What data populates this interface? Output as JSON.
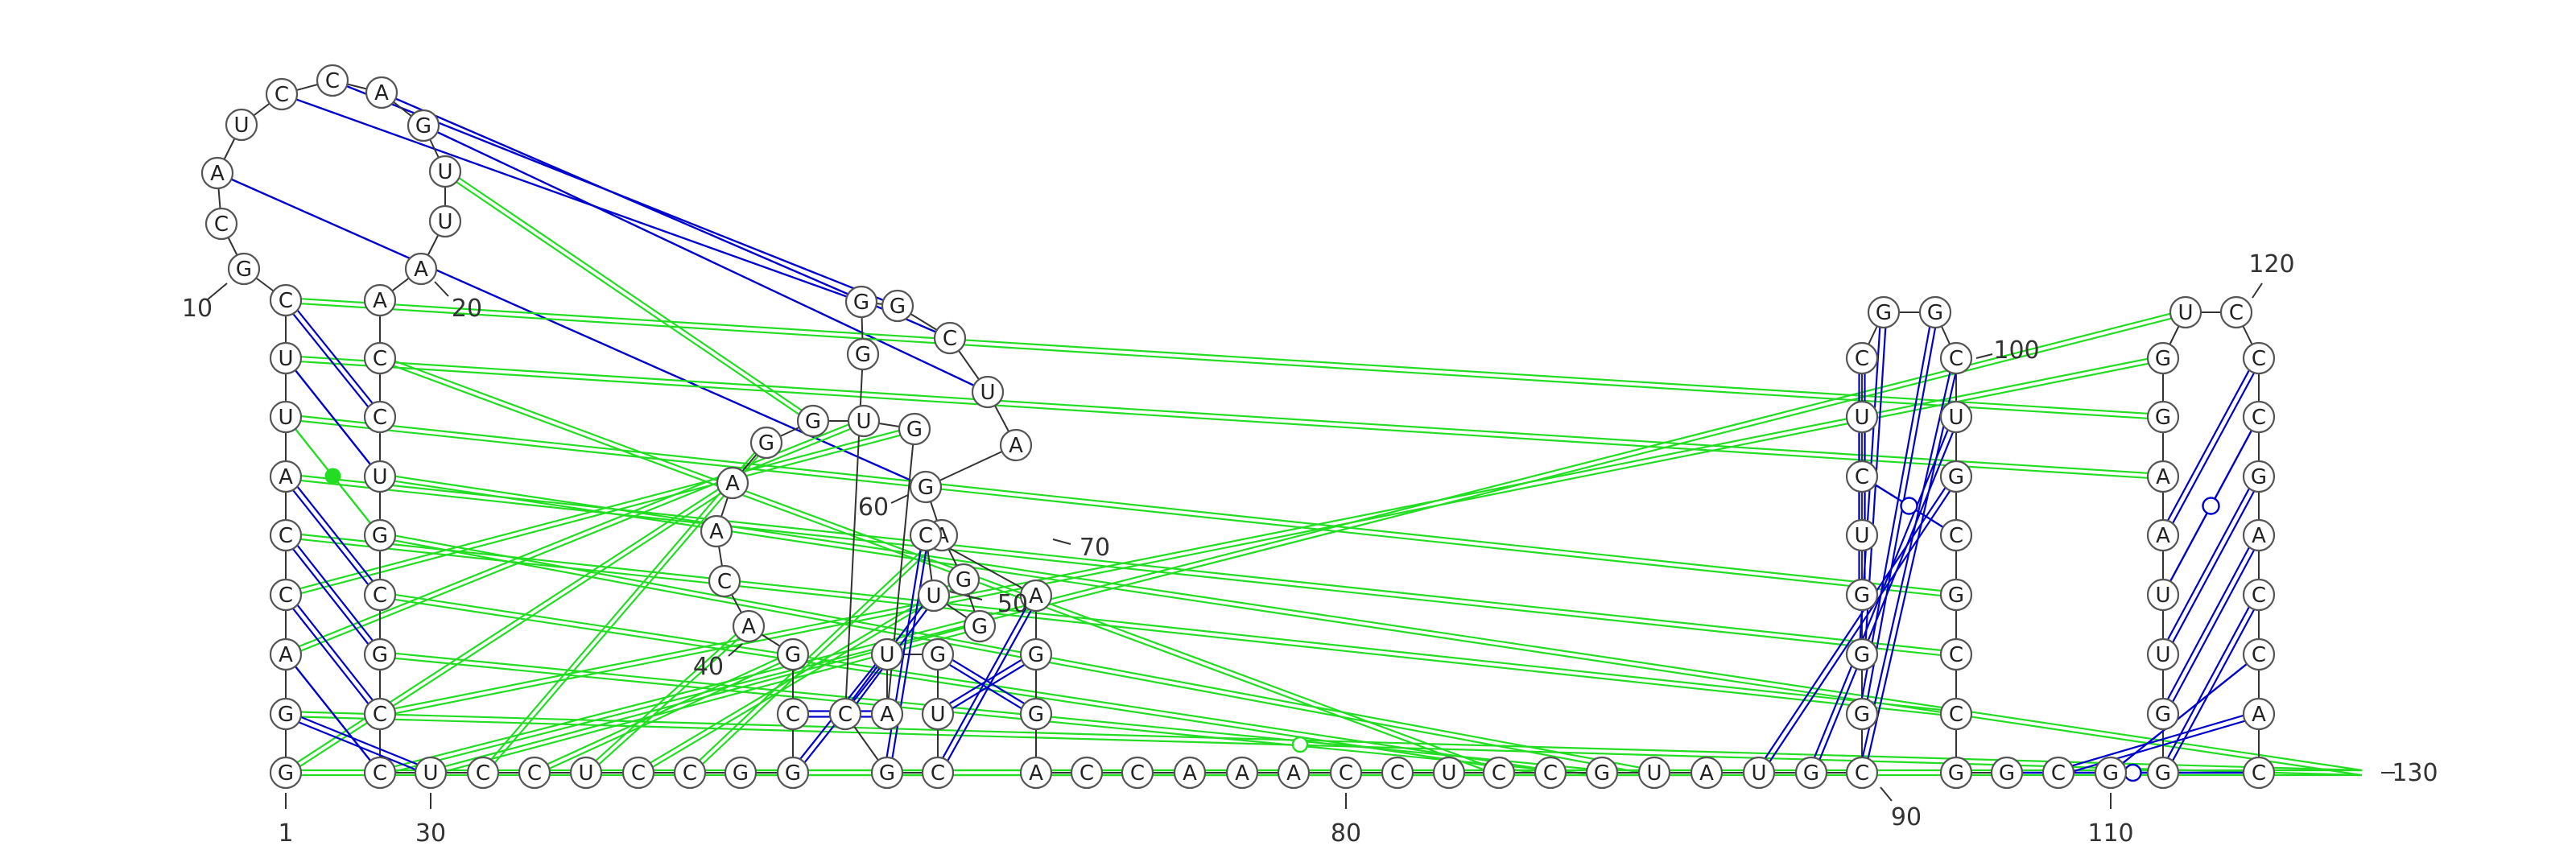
{
  "title": "RNA secondary structure diagram",
  "colors": {
    "canonical": "#0000cc",
    "noncanonical": "#22dd22",
    "outline": "#555555",
    "letter": "#222222"
  },
  "sequence": "GGACCAUUCGCAUCCAGUUAACCUGCGCCUCCUCCGGCGACAAGGUGAUGUCGCGGGCUAGAGGUCAGGACCAAACCUCCGUAUGCGGGUCUCGGCUGCGCCGGCGGGUUAAGGUCCCGACCAC",
  "index_labels": [
    {
      "num": "1",
      "text": "1"
    },
    {
      "num": "10",
      "text": "10"
    },
    {
      "num": "20",
      "text": "20"
    },
    {
      "num": "30",
      "text": "30"
    },
    {
      "num": "40",
      "text": "40"
    },
    {
      "num": "50",
      "text": "50"
    },
    {
      "num": "60",
      "text": "60"
    },
    {
      "num": "70",
      "text": "70"
    },
    {
      "num": "80",
      "text": "80"
    },
    {
      "num": "90",
      "text": "90"
    },
    {
      "num": "100",
      "text": "100"
    },
    {
      "num": "110",
      "text": "110"
    },
    {
      "num": "120",
      "text": "120"
    },
    {
      "num": "130",
      "text": "130"
    }
  ],
  "stem_pairs": [
    {
      "i": 2,
      "j": 30,
      "type": "wc"
    },
    {
      "i": 3,
      "j": 29,
      "type": "wobble"
    },
    {
      "i": 4,
      "j": 28,
      "type": "wc"
    },
    {
      "i": 5,
      "j": 27,
      "type": "wc"
    },
    {
      "i": 6,
      "j": 26,
      "type": "wc"
    },
    {
      "i": 7,
      "j": 25,
      "type": "gu-dot"
    },
    {
      "i": 8,
      "j": 24,
      "type": "wobble"
    },
    {
      "i": 9,
      "j": 23,
      "type": "wc"
    },
    {
      "i": 37,
      "j": 49,
      "type": "wc"
    },
    {
      "i": 38,
      "j": 48,
      "type": "wc"
    },
    {
      "i": 50,
      "j": 69,
      "type": "wc"
    },
    {
      "i": 51,
      "j": 68,
      "type": "wc"
    },
    {
      "i": 52,
      "j": 67,
      "type": "wc"
    },
    {
      "i": 53,
      "j": 66,
      "type": "wc"
    },
    {
      "i": 54,
      "j": 65,
      "type": "wc"
    },
    {
      "i": 84,
      "j": 98,
      "type": "wc"
    },
    {
      "i": 85,
      "j": 97,
      "type": "wc"
    },
    {
      "i": 86,
      "j": 96,
      "type": "wc"
    },
    {
      "i": 87,
      "j": 95,
      "type": "wc"
    },
    {
      "i": 88,
      "j": 94,
      "type": "wc"
    },
    {
      "i": 89,
      "j": 93,
      "type": "wc"
    },
    {
      "i": 90,
      "j": 92,
      "type": "wc"
    },
    {
      "i": 91,
      "j": 99,
      "type": "open-dot"
    },
    {
      "i": 104,
      "j": 124,
      "type": "open-dot"
    },
    {
      "i": 105,
      "j": 123,
      "type": "wc"
    },
    {
      "i": 106,
      "j": 122,
      "type": "wobble"
    },
    {
      "i": 107,
      "j": 121,
      "type": "wc"
    },
    {
      "i": 108,
      "j": 120,
      "type": "wc"
    },
    {
      "i": 109,
      "j": 119,
      "type": "wc"
    },
    {
      "i": 110,
      "j": 118,
      "type": "open-dot"
    },
    {
      "i": 111,
      "j": 117,
      "type": "wc"
    }
  ],
  "long_pairs": [
    {
      "i": 14,
      "j": 56,
      "type": "canonical"
    },
    {
      "i": 15,
      "j": 57,
      "type": "canonical"
    },
    {
      "i": 16,
      "j": 58,
      "type": "canonical"
    },
    {
      "i": 17,
      "j": 59,
      "type": "canonical"
    },
    {
      "i": 18,
      "j": 45,
      "type": "noncanonical"
    },
    {
      "i": 12,
      "j": 61,
      "type": "canonical"
    },
    {
      "i": 5,
      "j": 102,
      "type": "noncanonical"
    },
    {
      "i": 6,
      "j": 101,
      "type": "noncanonical"
    },
    {
      "i": 7,
      "j": 100,
      "type": "noncanonical"
    },
    {
      "i": 8,
      "j": 112,
      "type": "noncanonical"
    },
    {
      "i": 9,
      "j": 113,
      "type": "noncanonical"
    },
    {
      "i": 26,
      "j": 80,
      "type": "noncanonical"
    },
    {
      "i": 27,
      "j": 81,
      "type": "noncanonical"
    },
    {
      "i": 28,
      "j": 114,
      "type": "noncanonical"
    },
    {
      "i": 29,
      "j": 115,
      "type": "noncanonical"
    },
    {
      "i": 1,
      "j": 43,
      "type": "noncanonical"
    },
    {
      "i": 31,
      "j": 44,
      "type": "noncanonical"
    },
    {
      "i": 32,
      "j": 39,
      "type": "noncanonical"
    },
    {
      "i": 33,
      "j": 40,
      "type": "noncanonical"
    },
    {
      "i": 30,
      "j": 64,
      "type": "noncanonical"
    },
    {
      "i": 34,
      "j": 63,
      "type": "noncanonical"
    },
    {
      "i": 35,
      "j": 62,
      "type": "noncanonical"
    },
    {
      "i": 36,
      "j": 83,
      "type": "noncanonical"
    },
    {
      "i": 24,
      "j": 126,
      "type": "noncanonical"
    },
    {
      "i": 2,
      "j": 127,
      "type": "noncanonical"
    },
    {
      "i": 1,
      "j": 128,
      "type": "noncanonical"
    },
    {
      "i": 22,
      "j": 79,
      "type": "noncanonical"
    },
    {
      "i": 25,
      "j": 82,
      "type": "noncanonical"
    },
    {
      "i": 4,
      "j": 47,
      "type": "noncanonical"
    },
    {
      "i": 3,
      "j": 46,
      "type": "noncanonical"
    }
  ]
}
